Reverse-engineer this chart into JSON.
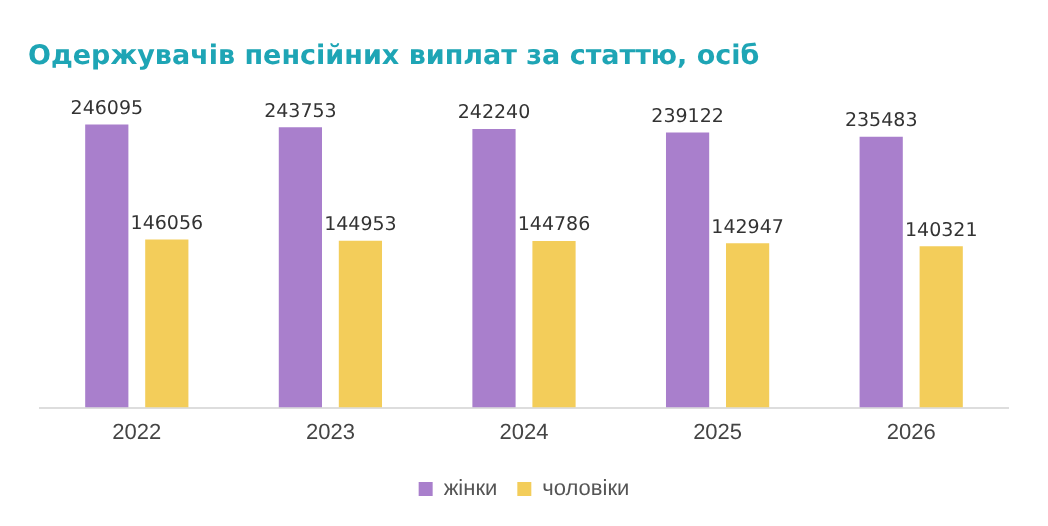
{
  "chart_data": {
    "type": "bar",
    "title": "Одержувачів пенсійних виплат за статтю, осіб",
    "categories": [
      "2022",
      "2023",
      "2024",
      "2025",
      "2026"
    ],
    "series": [
      {
        "name": "жінки",
        "color": "#a97fcc",
        "values": [
          246095,
          243753,
          242240,
          239122,
          235483
        ]
      },
      {
        "name": "чоловіки",
        "color": "#f3cd5a",
        "values": [
          146056,
          144953,
          144786,
          142947,
          140321
        ]
      }
    ],
    "data_labels": true,
    "legend": "bottom",
    "grid": false
  }
}
